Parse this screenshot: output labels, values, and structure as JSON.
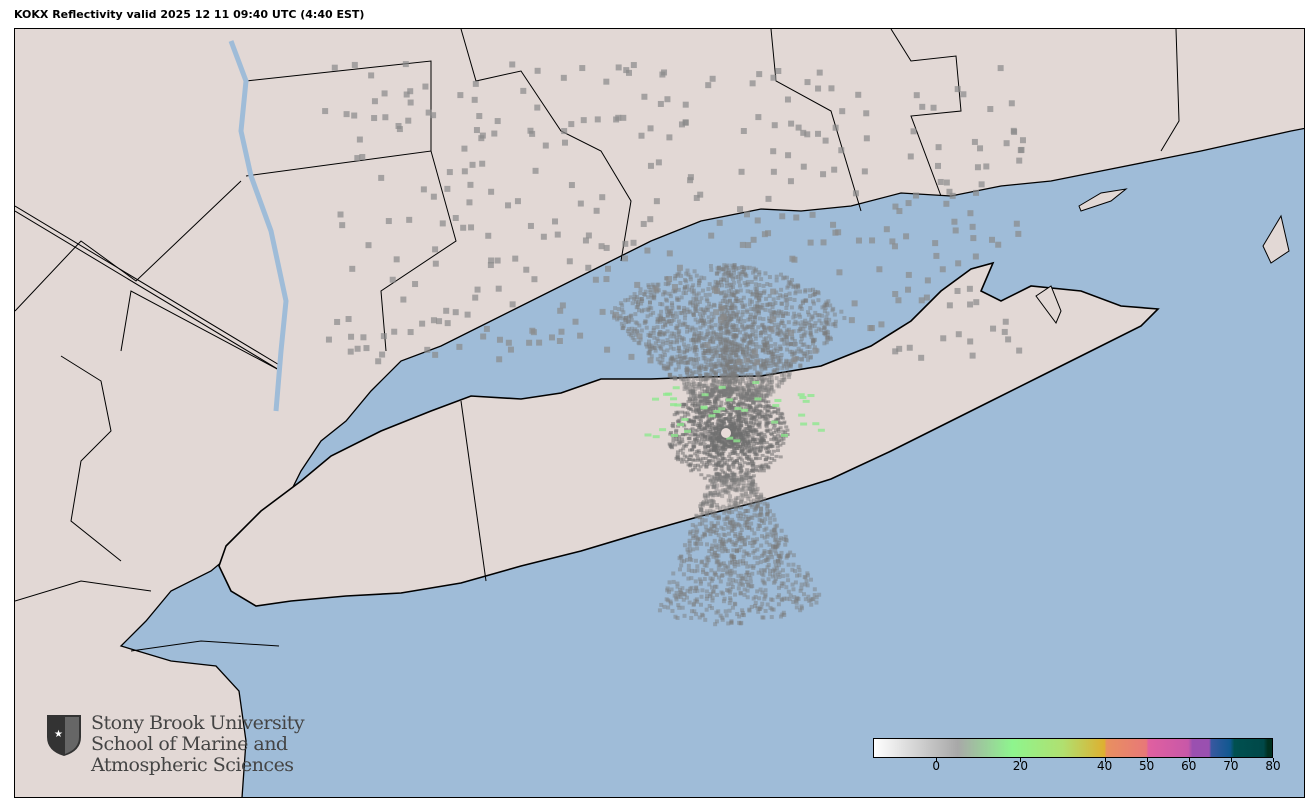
{
  "title": "KOKX Reflectivity valid 2025 12 11 09:40 UTC (4:40 EST)",
  "map": {
    "water_color": "#9fbcd8",
    "land_color": "#e2d8d5",
    "radar_site": "KOKX"
  },
  "colorbar": {
    "min": -15,
    "max": 80,
    "ticks": [
      {
        "value": 0,
        "label": "0"
      },
      {
        "value": 20,
        "label": "20"
      },
      {
        "value": 40,
        "label": "40"
      },
      {
        "value": 50,
        "label": "50"
      },
      {
        "value": 60,
        "label": "60"
      },
      {
        "value": 70,
        "label": "70"
      },
      {
        "value": 80,
        "label": "80"
      }
    ],
    "stops": [
      {
        "value": -15,
        "color": "#ffffff"
      },
      {
        "value": 5,
        "color": "#a8a8a8"
      },
      {
        "value": 18,
        "color": "#8ef58e"
      },
      {
        "value": 30,
        "color": "#b0e070"
      },
      {
        "value": 40,
        "color": "#deb030"
      },
      {
        "value": 40.5,
        "color": "#e89060"
      },
      {
        "value": 50,
        "color": "#e87878"
      },
      {
        "value": 50.5,
        "color": "#e060a0"
      },
      {
        "value": 60,
        "color": "#c858a8"
      },
      {
        "value": 61,
        "color": "#9a50b0"
      },
      {
        "value": 65,
        "color": "#9a50b0"
      },
      {
        "value": 65.5,
        "color": "#3858a0"
      },
      {
        "value": 70,
        "color": "#105890"
      },
      {
        "value": 71,
        "color": "#005050"
      },
      {
        "value": 78,
        "color": "#004848"
      },
      {
        "value": 79,
        "color": "#003020"
      }
    ]
  },
  "logo": {
    "line1": "Stony Brook University",
    "line2": "School of Marine and",
    "line3": "Atmospheric Sciences"
  }
}
